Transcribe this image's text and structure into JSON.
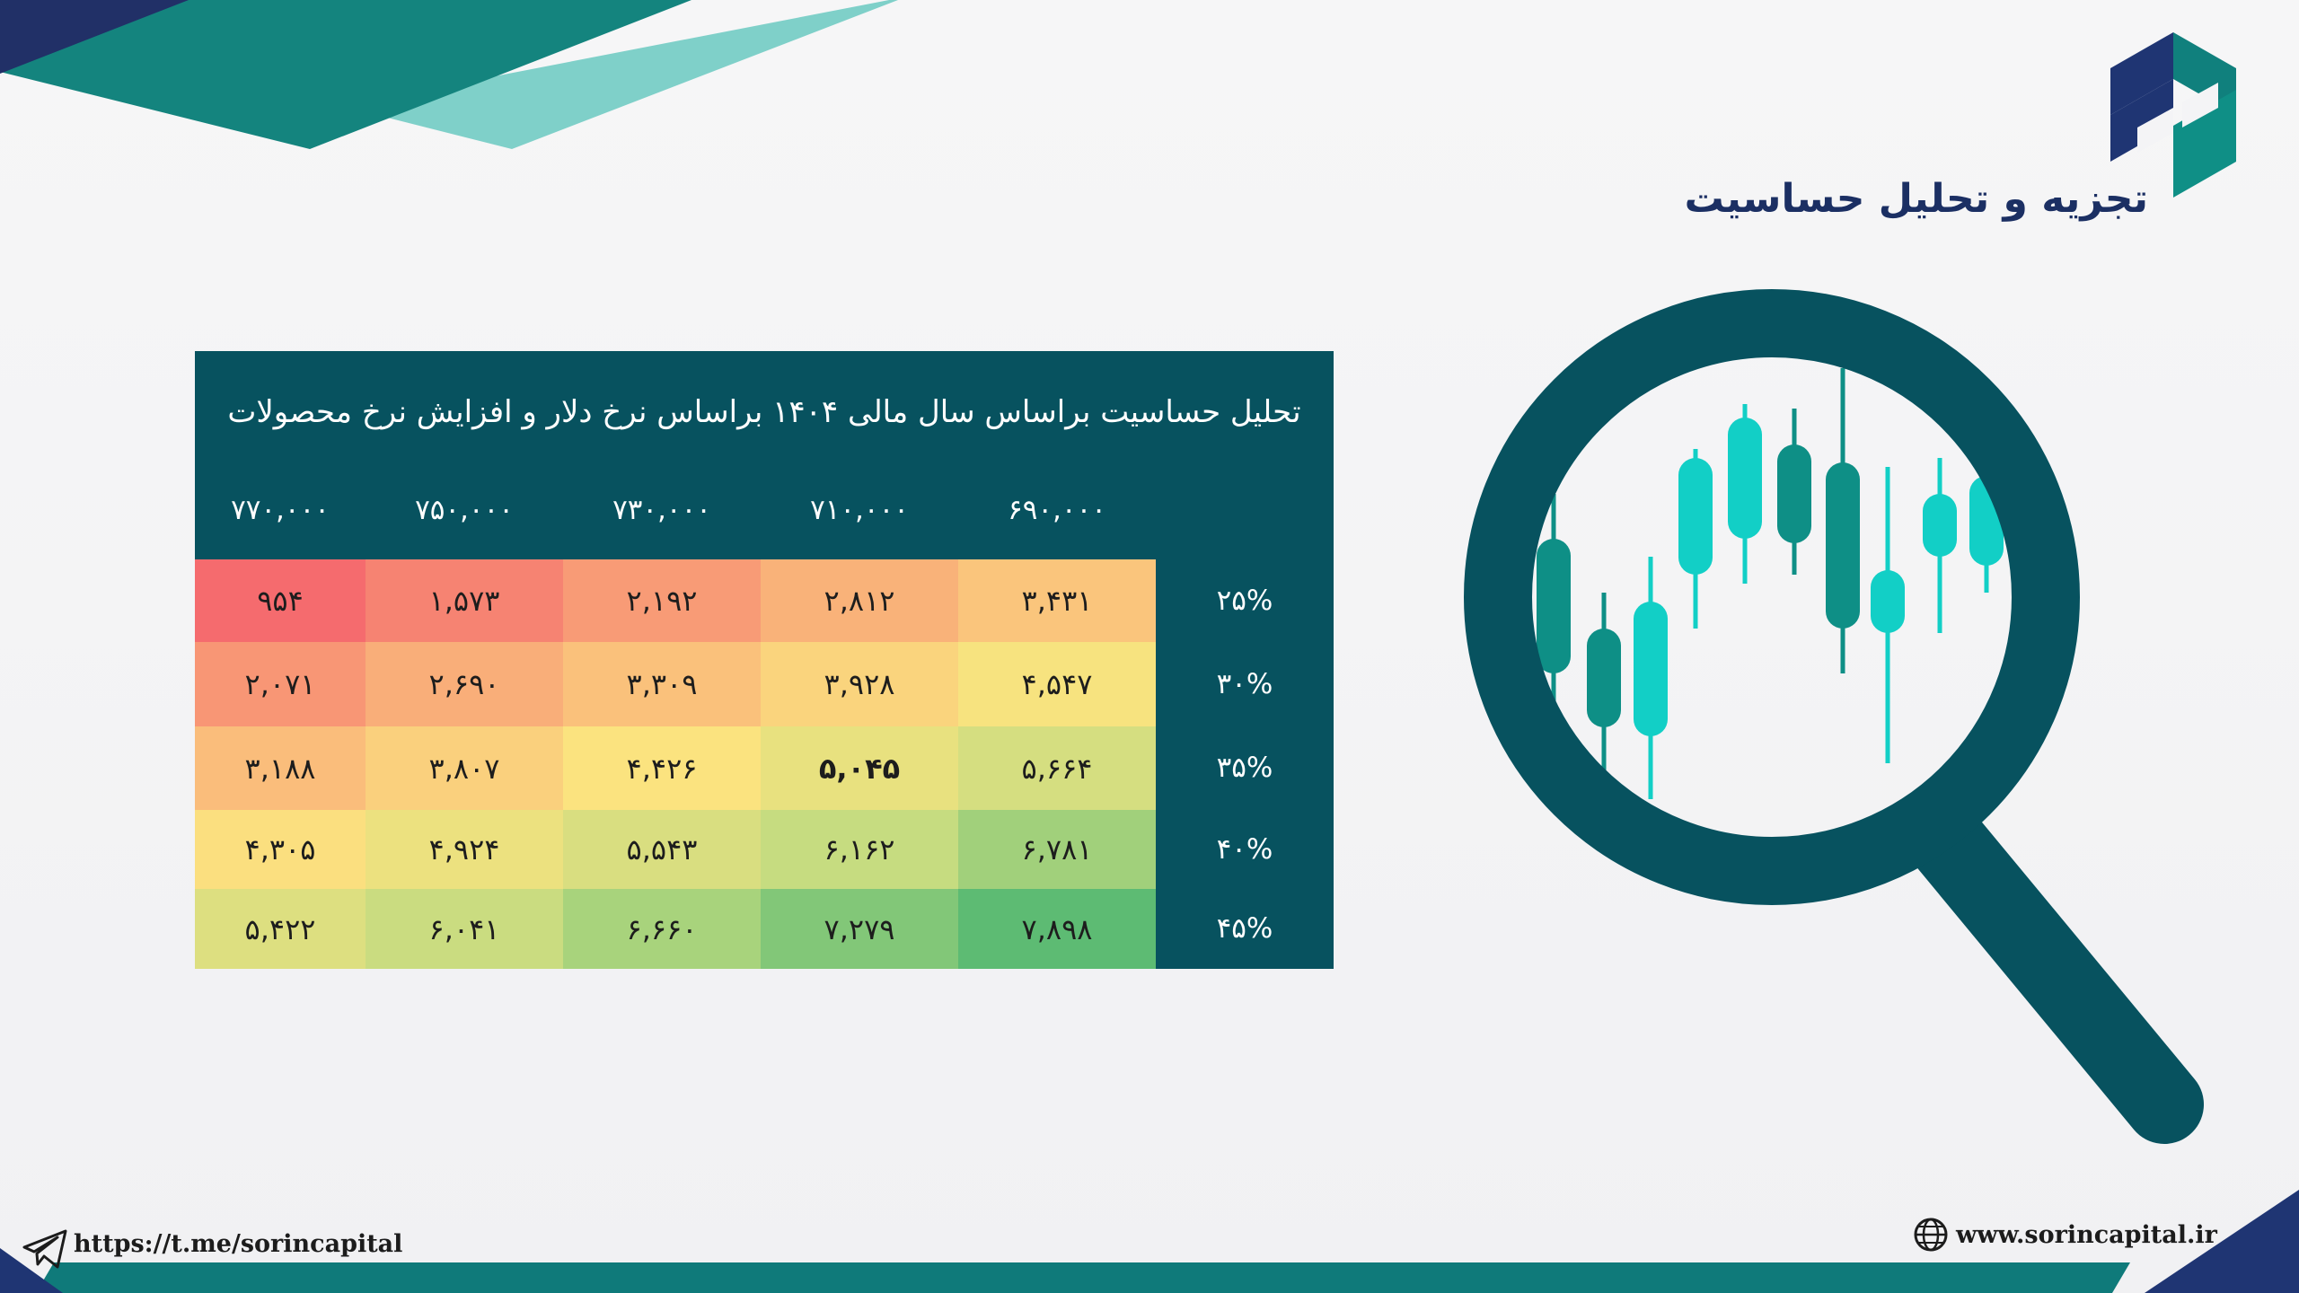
{
  "brand": {
    "title": "تجزیه و تحلیل حساسیت"
  },
  "table": {
    "title": "تحلیل حساسیت براساس سال مالی ۱۴۰۴ براساس نرخ دلار و افزایش نرخ محصولات"
  },
  "chart_data": {
    "type": "heatmap",
    "title": "تحلیل حساسیت براساس سال مالی ۱۴۰۴ براساس نرخ دلار و افزایش نرخ محصولات",
    "columns": [
      "۶۹۰,۰۰۰",
      "۷۱۰,۰۰۰",
      "۷۳۰,۰۰۰",
      "۷۵۰,۰۰۰",
      "۷۷۰,۰۰۰"
    ],
    "rows": [
      "۲۵%",
      "۳۰%",
      "۳۵%",
      "۴۰%",
      "۴۵%"
    ],
    "values": [
      [
        3431,
        2812,
        2192,
        1573,
        954
      ],
      [
        4547,
        3928,
        3309,
        2690,
        2071
      ],
      [
        5664,
        5045,
        4426,
        3807,
        3188
      ],
      [
        6781,
        6162,
        5543,
        4924,
        4305
      ],
      [
        7898,
        7279,
        6660,
        6041,
        5422
      ]
    ],
    "value_labels": [
      [
        "۳,۴۳۱",
        "۲,۸۱۲",
        "۲,۱۹۲",
        "۱,۵۷۳",
        "۹۵۴"
      ],
      [
        "۴,۵۴۷",
        "۳,۹۲۸",
        "۳,۳۰۹",
        "۲,۶۹۰",
        "۲,۰۷۱"
      ],
      [
        "۵,۶۶۴",
        "۵,۰۴۵",
        "۴,۴۲۶",
        "۳,۸۰۷",
        "۳,۱۸۸"
      ],
      [
        "۶,۷۸۱",
        "۶,۱۶۲",
        "۵,۵۴۳",
        "۴,۹۲۴",
        "۴,۳۰۵"
      ],
      [
        "۷,۸۹۸",
        "۷,۲۷۹",
        "۶,۶۶۰",
        "۶,۰۴۱",
        "۵,۴۲۲"
      ]
    ],
    "highlight": {
      "row": 2,
      "col": 1
    },
    "color_scale": [
      "#f56b6e",
      "#f9ae79",
      "#fbe37f",
      "#c6dc80",
      "#5dbb73"
    ],
    "grid": false
  },
  "footer": {
    "telegram": "https://t.me/sorincapital",
    "website": "www.sorincapital.ir"
  },
  "colors": {
    "teal_dark": "#07525f",
    "navy": "#1f3573",
    "accent": "#12cfc6"
  }
}
